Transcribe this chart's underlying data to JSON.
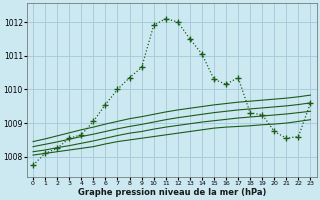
{
  "title": "Graphe pression niveau de la mer (hPa)",
  "background_color": "#cce8f0",
  "grid_color": "#aaccdd",
  "line_color": "#1a5c1a",
  "xlim": [
    -0.5,
    23.5
  ],
  "ylim": [
    1007.4,
    1012.55
  ],
  "yticks": [
    1008,
    1009,
    1010,
    1011,
    1012
  ],
  "xticks": [
    0,
    1,
    2,
    3,
    4,
    5,
    6,
    7,
    8,
    9,
    10,
    11,
    12,
    13,
    14,
    15,
    16,
    17,
    18,
    19,
    20,
    21,
    22,
    23
  ],
  "main_x": [
    0,
    1,
    2,
    3,
    4,
    5,
    6,
    7,
    8,
    9,
    10,
    11,
    12,
    13,
    14,
    15,
    16,
    17,
    18,
    19,
    20,
    21,
    22,
    23
  ],
  "main_y": [
    1007.75,
    1008.1,
    1008.25,
    1008.55,
    1008.65,
    1009.05,
    1009.55,
    1010.0,
    1010.35,
    1010.65,
    1011.9,
    1012.1,
    1012.0,
    1011.5,
    1011.05,
    1010.3,
    1010.15,
    1010.35,
    1009.3,
    1009.25,
    1008.75,
    1008.55,
    1008.6,
    1009.6
  ],
  "flat1_x": [
    0,
    1,
    2,
    3,
    4,
    5,
    6,
    7,
    8,
    9,
    10,
    11,
    12,
    13,
    14,
    15,
    16,
    17,
    18,
    19,
    20,
    21,
    22,
    23
  ],
  "flat1_y": [
    1008.05,
    1008.1,
    1008.15,
    1008.2,
    1008.25,
    1008.3,
    1008.38,
    1008.45,
    1008.5,
    1008.55,
    1008.6,
    1008.65,
    1008.7,
    1008.75,
    1008.8,
    1008.85,
    1008.88,
    1008.9,
    1008.92,
    1008.95,
    1008.97,
    1009.0,
    1009.05,
    1009.1
  ],
  "flat2_x": [
    0,
    1,
    2,
    3,
    4,
    5,
    6,
    7,
    8,
    9,
    10,
    11,
    12,
    13,
    14,
    15,
    16,
    17,
    18,
    19,
    20,
    21,
    22,
    23
  ],
  "flat2_y": [
    1008.15,
    1008.2,
    1008.27,
    1008.33,
    1008.4,
    1008.47,
    1008.55,
    1008.63,
    1008.7,
    1008.75,
    1008.82,
    1008.88,
    1008.93,
    1008.98,
    1009.03,
    1009.07,
    1009.11,
    1009.15,
    1009.18,
    1009.21,
    1009.24,
    1009.27,
    1009.31,
    1009.35
  ],
  "flat3_x": [
    0,
    1,
    2,
    3,
    4,
    5,
    6,
    7,
    8,
    9,
    10,
    11,
    12,
    13,
    14,
    15,
    16,
    17,
    18,
    19,
    20,
    21,
    22,
    23
  ],
  "flat3_y": [
    1008.3,
    1008.37,
    1008.44,
    1008.52,
    1008.6,
    1008.67,
    1008.75,
    1008.83,
    1008.9,
    1008.96,
    1009.03,
    1009.1,
    1009.16,
    1009.21,
    1009.26,
    1009.31,
    1009.35,
    1009.39,
    1009.42,
    1009.45,
    1009.48,
    1009.51,
    1009.55,
    1009.6
  ],
  "flat4_x": [
    0,
    1,
    2,
    3,
    4,
    5,
    6,
    7,
    8,
    9,
    10,
    11,
    12,
    13,
    14,
    15,
    16,
    17,
    18,
    19,
    20,
    21,
    22,
    23
  ],
  "flat4_y": [
    1008.45,
    1008.53,
    1008.62,
    1008.71,
    1008.8,
    1008.88,
    1008.97,
    1009.05,
    1009.13,
    1009.19,
    1009.26,
    1009.33,
    1009.39,
    1009.44,
    1009.49,
    1009.54,
    1009.58,
    1009.62,
    1009.65,
    1009.68,
    1009.71,
    1009.74,
    1009.78,
    1009.83
  ]
}
